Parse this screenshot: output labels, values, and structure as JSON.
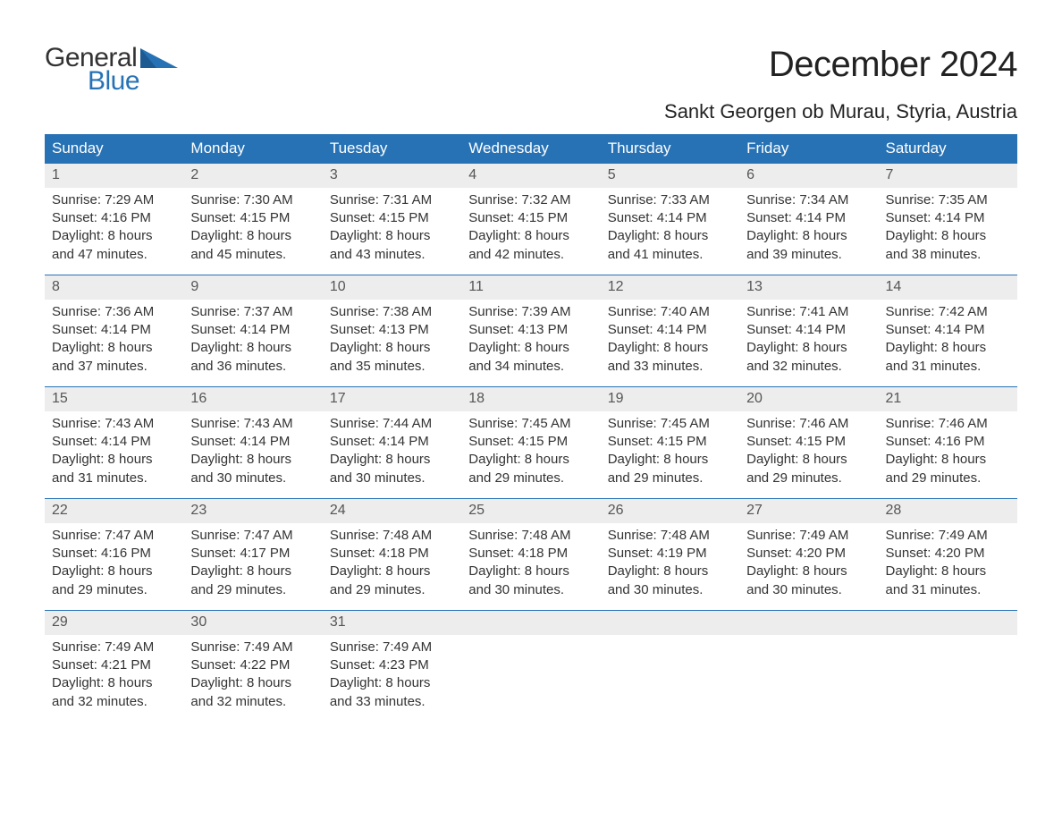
{
  "logo": {
    "word1": "General",
    "word2": "Blue",
    "accent_color": "#2772b5"
  },
  "title": "December 2024",
  "location": "Sankt Georgen ob Murau, Styria, Austria",
  "colors": {
    "header_bg": "#2772b5",
    "header_text": "#ffffff",
    "daynum_bg": "#ededed",
    "daynum_text": "#555555",
    "body_text": "#333333",
    "week_border": "#2772b5",
    "background": "#ffffff"
  },
  "typography": {
    "title_fontsize": 40,
    "location_fontsize": 22,
    "header_fontsize": 17,
    "daynum_fontsize": 16,
    "dayinfo_fontsize": 15
  },
  "calendar": {
    "columns": [
      "Sunday",
      "Monday",
      "Tuesday",
      "Wednesday",
      "Thursday",
      "Friday",
      "Saturday"
    ],
    "weeks": [
      [
        {
          "n": "1",
          "sunrise": "7:29 AM",
          "sunset": "4:16 PM",
          "dl1": "Daylight: 8 hours",
          "dl2": "and 47 minutes."
        },
        {
          "n": "2",
          "sunrise": "7:30 AM",
          "sunset": "4:15 PM",
          "dl1": "Daylight: 8 hours",
          "dl2": "and 45 minutes."
        },
        {
          "n": "3",
          "sunrise": "7:31 AM",
          "sunset": "4:15 PM",
          "dl1": "Daylight: 8 hours",
          "dl2": "and 43 minutes."
        },
        {
          "n": "4",
          "sunrise": "7:32 AM",
          "sunset": "4:15 PM",
          "dl1": "Daylight: 8 hours",
          "dl2": "and 42 minutes."
        },
        {
          "n": "5",
          "sunrise": "7:33 AM",
          "sunset": "4:14 PM",
          "dl1": "Daylight: 8 hours",
          "dl2": "and 41 minutes."
        },
        {
          "n": "6",
          "sunrise": "7:34 AM",
          "sunset": "4:14 PM",
          "dl1": "Daylight: 8 hours",
          "dl2": "and 39 minutes."
        },
        {
          "n": "7",
          "sunrise": "7:35 AM",
          "sunset": "4:14 PM",
          "dl1": "Daylight: 8 hours",
          "dl2": "and 38 minutes."
        }
      ],
      [
        {
          "n": "8",
          "sunrise": "7:36 AM",
          "sunset": "4:14 PM",
          "dl1": "Daylight: 8 hours",
          "dl2": "and 37 minutes."
        },
        {
          "n": "9",
          "sunrise": "7:37 AM",
          "sunset": "4:14 PM",
          "dl1": "Daylight: 8 hours",
          "dl2": "and 36 minutes."
        },
        {
          "n": "10",
          "sunrise": "7:38 AM",
          "sunset": "4:13 PM",
          "dl1": "Daylight: 8 hours",
          "dl2": "and 35 minutes."
        },
        {
          "n": "11",
          "sunrise": "7:39 AM",
          "sunset": "4:13 PM",
          "dl1": "Daylight: 8 hours",
          "dl2": "and 34 minutes."
        },
        {
          "n": "12",
          "sunrise": "7:40 AM",
          "sunset": "4:14 PM",
          "dl1": "Daylight: 8 hours",
          "dl2": "and 33 minutes."
        },
        {
          "n": "13",
          "sunrise": "7:41 AM",
          "sunset": "4:14 PM",
          "dl1": "Daylight: 8 hours",
          "dl2": "and 32 minutes."
        },
        {
          "n": "14",
          "sunrise": "7:42 AM",
          "sunset": "4:14 PM",
          "dl1": "Daylight: 8 hours",
          "dl2": "and 31 minutes."
        }
      ],
      [
        {
          "n": "15",
          "sunrise": "7:43 AM",
          "sunset": "4:14 PM",
          "dl1": "Daylight: 8 hours",
          "dl2": "and 31 minutes."
        },
        {
          "n": "16",
          "sunrise": "7:43 AM",
          "sunset": "4:14 PM",
          "dl1": "Daylight: 8 hours",
          "dl2": "and 30 minutes."
        },
        {
          "n": "17",
          "sunrise": "7:44 AM",
          "sunset": "4:14 PM",
          "dl1": "Daylight: 8 hours",
          "dl2": "and 30 minutes."
        },
        {
          "n": "18",
          "sunrise": "7:45 AM",
          "sunset": "4:15 PM",
          "dl1": "Daylight: 8 hours",
          "dl2": "and 29 minutes."
        },
        {
          "n": "19",
          "sunrise": "7:45 AM",
          "sunset": "4:15 PM",
          "dl1": "Daylight: 8 hours",
          "dl2": "and 29 minutes."
        },
        {
          "n": "20",
          "sunrise": "7:46 AM",
          "sunset": "4:15 PM",
          "dl1": "Daylight: 8 hours",
          "dl2": "and 29 minutes."
        },
        {
          "n": "21",
          "sunrise": "7:46 AM",
          "sunset": "4:16 PM",
          "dl1": "Daylight: 8 hours",
          "dl2": "and 29 minutes."
        }
      ],
      [
        {
          "n": "22",
          "sunrise": "7:47 AM",
          "sunset": "4:16 PM",
          "dl1": "Daylight: 8 hours",
          "dl2": "and 29 minutes."
        },
        {
          "n": "23",
          "sunrise": "7:47 AM",
          "sunset": "4:17 PM",
          "dl1": "Daylight: 8 hours",
          "dl2": "and 29 minutes."
        },
        {
          "n": "24",
          "sunrise": "7:48 AM",
          "sunset": "4:18 PM",
          "dl1": "Daylight: 8 hours",
          "dl2": "and 29 minutes."
        },
        {
          "n": "25",
          "sunrise": "7:48 AM",
          "sunset": "4:18 PM",
          "dl1": "Daylight: 8 hours",
          "dl2": "and 30 minutes."
        },
        {
          "n": "26",
          "sunrise": "7:48 AM",
          "sunset": "4:19 PM",
          "dl1": "Daylight: 8 hours",
          "dl2": "and 30 minutes."
        },
        {
          "n": "27",
          "sunrise": "7:49 AM",
          "sunset": "4:20 PM",
          "dl1": "Daylight: 8 hours",
          "dl2": "and 30 minutes."
        },
        {
          "n": "28",
          "sunrise": "7:49 AM",
          "sunset": "4:20 PM",
          "dl1": "Daylight: 8 hours",
          "dl2": "and 31 minutes."
        }
      ],
      [
        {
          "n": "29",
          "sunrise": "7:49 AM",
          "sunset": "4:21 PM",
          "dl1": "Daylight: 8 hours",
          "dl2": "and 32 minutes."
        },
        {
          "n": "30",
          "sunrise": "7:49 AM",
          "sunset": "4:22 PM",
          "dl1": "Daylight: 8 hours",
          "dl2": "and 32 minutes."
        },
        {
          "n": "31",
          "sunrise": "7:49 AM",
          "sunset": "4:23 PM",
          "dl1": "Daylight: 8 hours",
          "dl2": "and 33 minutes."
        },
        null,
        null,
        null,
        null
      ]
    ]
  },
  "labels": {
    "sunrise_prefix": "Sunrise: ",
    "sunset_prefix": "Sunset: "
  }
}
